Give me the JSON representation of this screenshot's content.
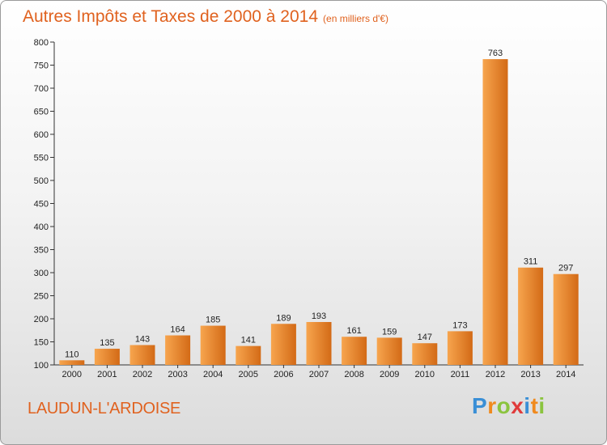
{
  "title": {
    "main": "Autres Impôts et Taxes de 2000 à 2014",
    "unit": "(en milliers d'€)"
  },
  "commune": "LAUDUN-L'ARDOISE",
  "brand": {
    "letters": [
      "P",
      "r",
      "o",
      "x",
      "i",
      "t",
      "i"
    ],
    "colors": [
      "#3a8fd6",
      "#f08a1e",
      "#8bc43f",
      "#e03b3b",
      "#3a8fd6",
      "#f08a1e",
      "#8bc43f"
    ]
  },
  "colors": {
    "bar_light": "#f7a54e",
    "bar_dark": "#d36a16",
    "accent": "#e0621f"
  },
  "chart_data": {
    "type": "bar",
    "categories": [
      "2000",
      "2001",
      "2002",
      "2003",
      "2004",
      "2005",
      "2006",
      "2007",
      "2008",
      "2009",
      "2010",
      "2011",
      "2012",
      "2013",
      "2014"
    ],
    "values": [
      110,
      135,
      143,
      164,
      185,
      141,
      189,
      193,
      161,
      159,
      147,
      173,
      763,
      311,
      297
    ],
    "ylim": [
      100,
      800
    ],
    "yticks": [
      100,
      150,
      200,
      250,
      300,
      350,
      400,
      450,
      500,
      550,
      600,
      650,
      700,
      750,
      800
    ],
    "grid": false,
    "legend": "none"
  }
}
